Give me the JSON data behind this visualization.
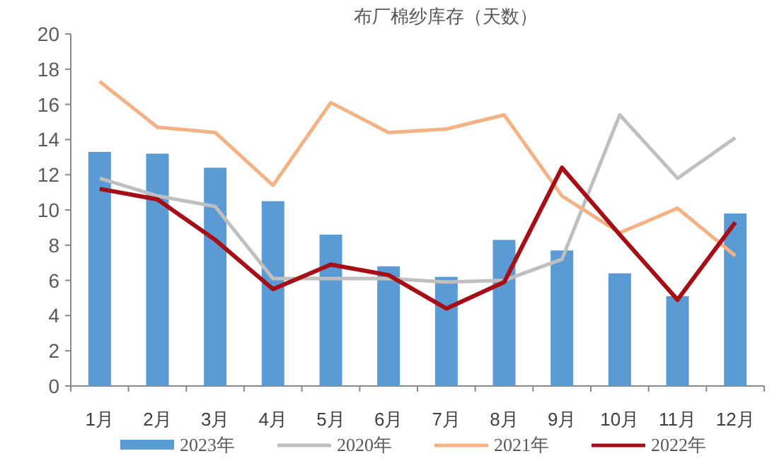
{
  "chart_data": {
    "type": "bar",
    "title": "布厂棉纱库存（天数）",
    "categories": [
      "1月",
      "2月",
      "3月",
      "4月",
      "5月",
      "6月",
      "7月",
      "8月",
      "9月",
      "10月",
      "11月",
      "12月"
    ],
    "series": [
      {
        "name": "2023年",
        "color": "#5b9bd5",
        "values": [
          13.3,
          13.2,
          12.4,
          10.5,
          8.6,
          6.8,
          6.2,
          8.3,
          7.7,
          6.4,
          5.1,
          9.8
        ]
      },
      {
        "name": "2020年",
        "type": "line",
        "color": "#bfbfbf",
        "values": [
          11.8,
          10.8,
          10.2,
          6.1,
          6.1,
          6.1,
          5.9,
          6.0,
          7.2,
          15.4,
          11.8,
          14.1
        ]
      },
      {
        "name": "2021年",
        "type": "line",
        "color": "#f4b183",
        "values": [
          17.3,
          14.7,
          14.4,
          11.4,
          16.1,
          14.4,
          14.6,
          15.4,
          10.8,
          8.7,
          10.1,
          7.4
        ]
      },
      {
        "name": "2022年",
        "type": "line",
        "color": "#a50f15",
        "values": [
          11.2,
          10.6,
          8.3,
          5.5,
          6.9,
          6.3,
          4.4,
          5.9,
          12.4,
          8.6,
          4.9,
          9.3
        ]
      }
    ],
    "ylim": [
      0,
      20
    ],
    "yticks": [
      0,
      2,
      4,
      6,
      8,
      10,
      12,
      14,
      16,
      18,
      20
    ],
    "legend": "bottom"
  }
}
